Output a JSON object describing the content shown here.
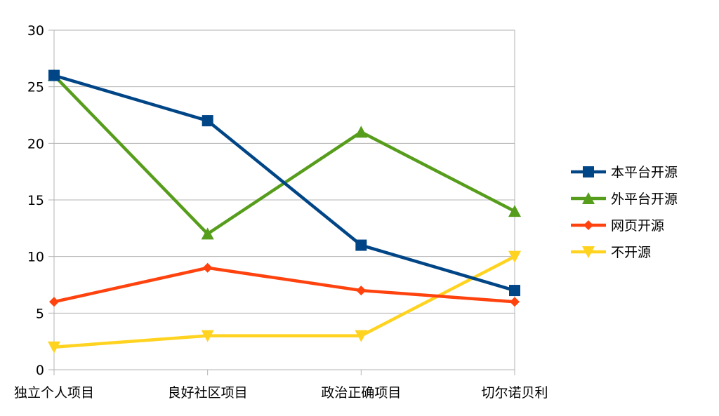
{
  "chart_data": {
    "type": "line",
    "title": "",
    "xlabel": "",
    "ylabel": "",
    "categories": [
      "独立个人项目",
      "良好社区项目",
      "政治正确项目",
      "切尔诺贝利"
    ],
    "ylim": [
      0,
      30
    ],
    "yticks": [
      "0",
      "5",
      "10",
      "15",
      "20",
      "25",
      "30"
    ],
    "grid": true,
    "legend_position": "right",
    "series": [
      {
        "name": "本平台开源",
        "values": [
          26,
          22,
          11,
          7
        ],
        "color": "#004586",
        "marker": "square"
      },
      {
        "name": "外平台开源",
        "values": [
          26,
          12,
          21,
          14
        ],
        "color": "#579d1c",
        "marker": "triangle-up"
      },
      {
        "name": "网页开源",
        "values": [
          6,
          9,
          7,
          6
        ],
        "color": "#ff420e",
        "marker": "diamond"
      },
      {
        "name": "不开源",
        "values": [
          2,
          3,
          3,
          10
        ],
        "color": "#ffd320",
        "marker": "triangle-down"
      }
    ]
  }
}
